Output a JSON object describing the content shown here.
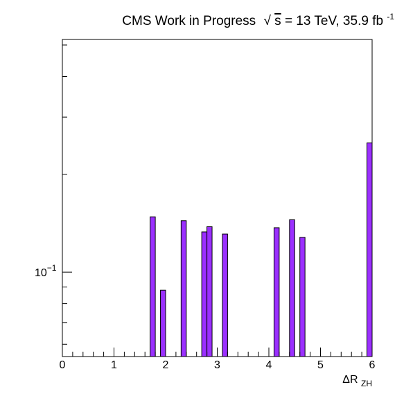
{
  "chart_data": {
    "type": "bar",
    "title": {
      "prefix": "CMS Work in Progress",
      "sqrt_symbol": "√",
      "sqrt_arg": "s",
      "energy": " = 13 TeV, 35.9 fb",
      "lumi_exp": "-1"
    },
    "xlabel": {
      "main": "ΔR",
      "sub": "ZH"
    },
    "ylabel": "",
    "yscale": "log",
    "xlim": [
      0,
      6
    ],
    "ylim": [
      0.055,
      0.52
    ],
    "bin_width": 0.1,
    "x_ticks": [
      0,
      1,
      2,
      3,
      4,
      5,
      6
    ],
    "x_tick_labels": [
      "0",
      "1",
      "2",
      "3",
      "4",
      "5",
      "6"
    ],
    "y_tick_labels": [
      {
        "value": 0.1,
        "base": "10",
        "exp": "−1"
      }
    ],
    "bars": [
      {
        "x": 1.7,
        "value": 0.148
      },
      {
        "x": 1.9,
        "value": 0.088
      },
      {
        "x": 2.3,
        "value": 0.144
      },
      {
        "x": 2.7,
        "value": 0.133
      },
      {
        "x": 2.8,
        "value": 0.138
      },
      {
        "x": 3.1,
        "value": 0.131
      },
      {
        "x": 4.1,
        "value": 0.137
      },
      {
        "x": 4.4,
        "value": 0.145
      },
      {
        "x": 4.6,
        "value": 0.128
      },
      {
        "x": 5.9,
        "value": 0.25
      }
    ],
    "bar_color": "#9b30ff",
    "edge_color": "#000000",
    "grid": false,
    "legend": "none"
  }
}
